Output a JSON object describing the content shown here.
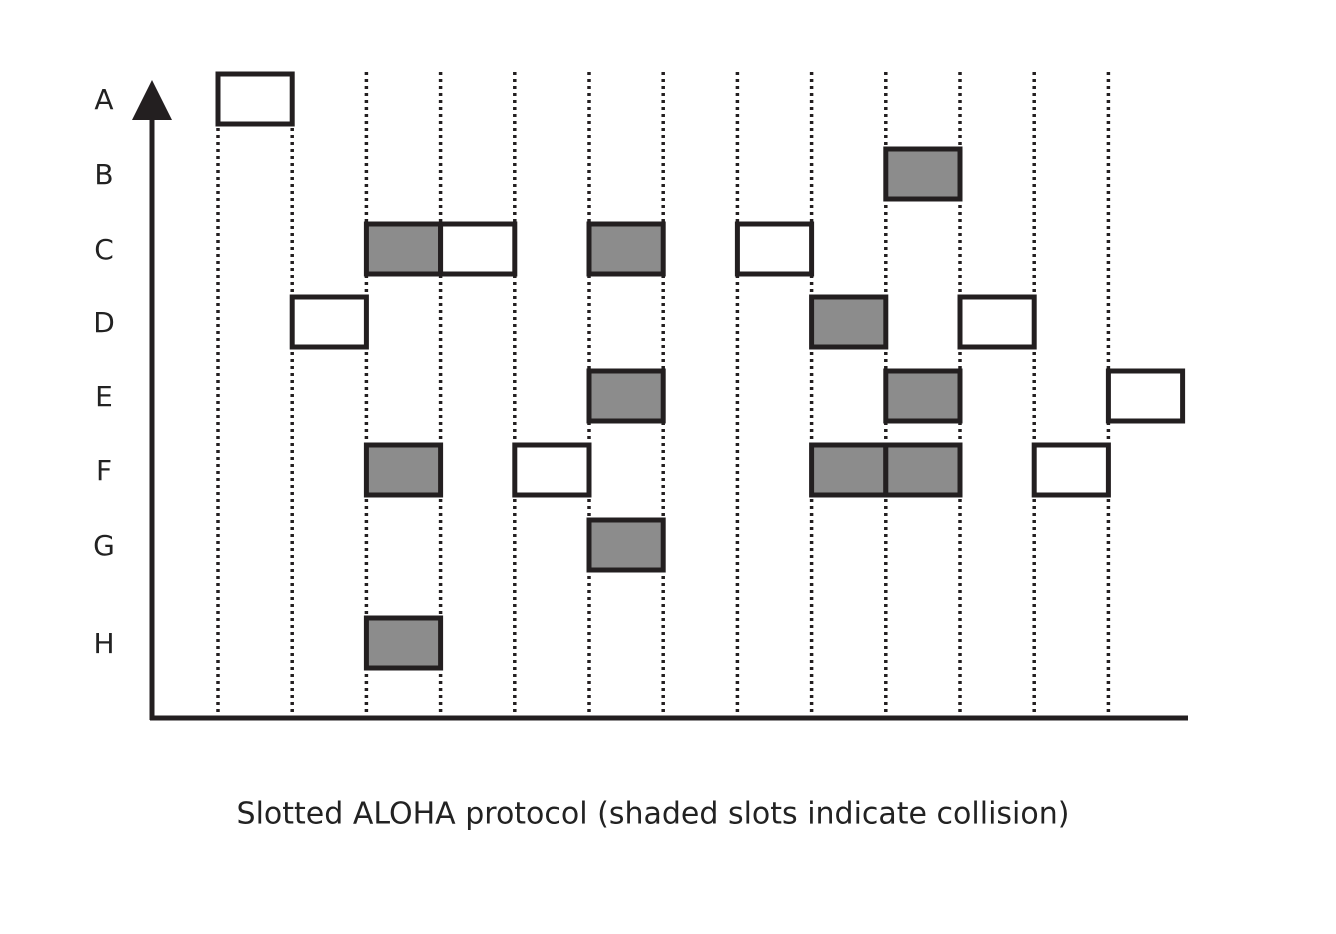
{
  "stations": [
    "A",
    "B",
    "C",
    "D",
    "E",
    "F",
    "G",
    "H"
  ],
  "caption": "Slotted ALOHA protocol (shaded slots indicate collision)"
}
